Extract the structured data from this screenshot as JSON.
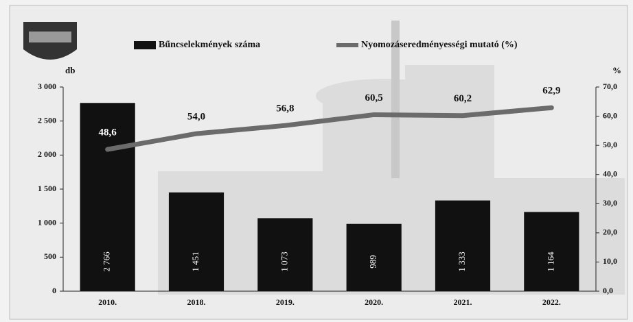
{
  "chart_data": {
    "type": "combo",
    "categories": [
      "2010.",
      "2018.",
      "2019.",
      "2020.",
      "2021.",
      "2022."
    ],
    "series": [
      {
        "name": "Bűncselekmények száma",
        "type": "bar",
        "axis": "y",
        "color": "#111111",
        "values": [
          2766,
          1451,
          1073,
          989,
          1333,
          1164
        ],
        "value_labels": [
          "2 766",
          "1 451",
          "1 073",
          "989",
          "1 333",
          "1 164"
        ]
      },
      {
        "name": "Nyomozáseredményességi mutató (%)",
        "type": "line",
        "axis": "y2",
        "color": "#6b6b6b",
        "values": [
          48.6,
          54.0,
          56.8,
          60.5,
          60.2,
          62.9
        ],
        "value_labels": [
          "48,6",
          "54,0",
          "56,8",
          "60,5",
          "60,2",
          "62,9"
        ]
      }
    ],
    "ylabel": "db",
    "y2label": "%",
    "ylim": [
      0,
      3000
    ],
    "yticks": [
      0,
      500,
      {
        "value": 1000,
        "label": "1 000"
      },
      {
        "value": 1500,
        "label": "1 500"
      },
      {
        "value": 2000,
        "label": "2 000"
      },
      {
        "value": 2500,
        "label": "2 500"
      },
      {
        "value": 3000,
        "label": "3 000"
      }
    ],
    "y2lim": [
      0,
      70
    ],
    "y2ticks": [
      {
        "value": 0,
        "label": "0,0"
      },
      {
        "value": 10,
        "label": "10,0"
      },
      {
        "value": 20,
        "label": "20,0"
      },
      {
        "value": 30,
        "label": "30,0"
      },
      {
        "value": 40,
        "label": "40,0"
      },
      {
        "value": 50,
        "label": "50,0"
      },
      {
        "value": 60,
        "label": "60,0"
      },
      {
        "value": 70,
        "label": "70,0"
      }
    ],
    "legend": "top"
  }
}
